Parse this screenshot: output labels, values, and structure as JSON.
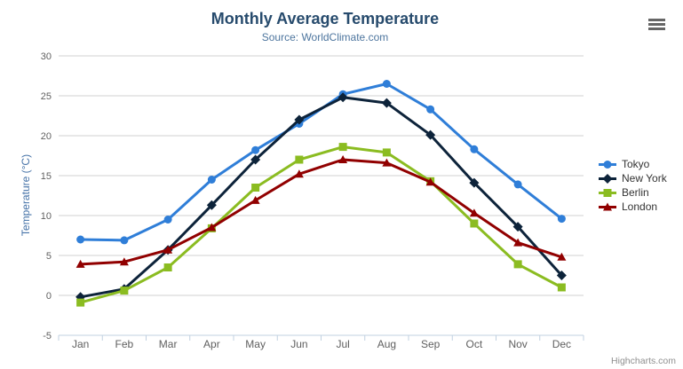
{
  "chart_data": {
    "type": "line",
    "title": "Monthly Average Temperature",
    "subtitle": "Source: WorldClimate.com",
    "categories": [
      "Jan",
      "Feb",
      "Mar",
      "Apr",
      "May",
      "Jun",
      "Jul",
      "Aug",
      "Sep",
      "Oct",
      "Nov",
      "Dec"
    ],
    "xlabel": "",
    "ylabel": "Temperature (°C)",
    "ylim": [
      -5,
      30
    ],
    "ytick_step": 5,
    "grid": true,
    "legend_position": "right",
    "series": [
      {
        "name": "Tokyo",
        "color": "#2f7ed8",
        "marker": "circle",
        "values": [
          7.0,
          6.9,
          9.5,
          14.5,
          18.2,
          21.5,
          25.2,
          26.5,
          23.3,
          18.3,
          13.9,
          9.6
        ]
      },
      {
        "name": "New York",
        "color": "#0d233a",
        "marker": "diamond",
        "values": [
          -0.2,
          0.8,
          5.7,
          11.3,
          17.0,
          22.0,
          24.8,
          24.1,
          20.1,
          14.1,
          8.6,
          2.5
        ]
      },
      {
        "name": "Berlin",
        "color": "#8bbc21",
        "marker": "square",
        "values": [
          -0.9,
          0.6,
          3.5,
          8.4,
          13.5,
          17.0,
          18.6,
          17.9,
          14.3,
          9.0,
          3.9,
          1.0
        ]
      },
      {
        "name": "London",
        "color": "#910000",
        "marker": "triangle",
        "values": [
          3.9,
          4.2,
          5.7,
          8.5,
          11.9,
          15.2,
          17.0,
          16.6,
          14.2,
          10.3,
          6.6,
          4.8
        ]
      }
    ]
  },
  "credits": {
    "label": "Highcharts.com"
  },
  "icons": {
    "context_menu": "hamburger-icon"
  },
  "colors": {
    "title_text": "#274b6d",
    "subtitle_text": "#4d759e",
    "axis_title_text": "#4572a7",
    "tick_label_text": "#606060",
    "grid_line": "#d0d0d0",
    "axis_line": "#c0d0e0",
    "legend_text": "#333333",
    "credits_text": "#8f8f8f",
    "menu_icon": "#666666",
    "background": "#ffffff"
  }
}
